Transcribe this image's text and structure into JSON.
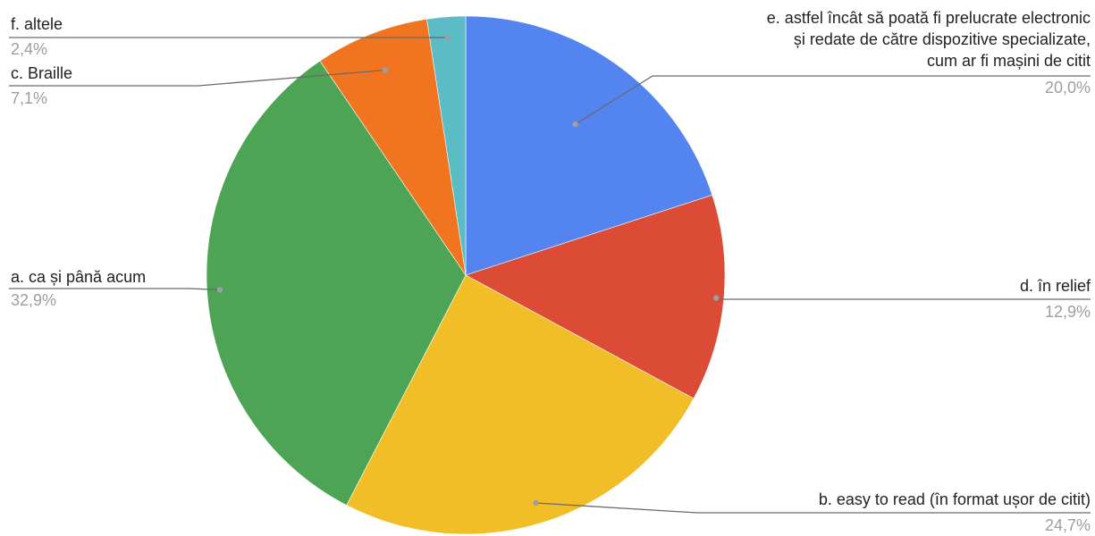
{
  "chart_data": {
    "type": "pie",
    "title": "",
    "slices": [
      {
        "label_lines": [
          "e. astfel încât să poată fi prelucrate electronic",
          "și redate de către dispozitive specializate,",
          "cum ar fi mașini de citit"
        ],
        "value": 20.0,
        "percent_label": "20,0%",
        "color": "#5384f0"
      },
      {
        "label_lines": [
          "d. în relief"
        ],
        "value": 12.9,
        "percent_label": "12,9%",
        "color": "#dc4b36"
      },
      {
        "label_lines": [
          "b.  easy to read (în format ușor de citit)"
        ],
        "value": 24.7,
        "percent_label": "24,7%",
        "color": "#f2be28"
      },
      {
        "label_lines": [
          "a. ca și până acum"
        ],
        "value": 32.9,
        "percent_label": "32,9%",
        "color": "#4ca454"
      },
      {
        "label_lines": [
          "c.  Braille"
        ],
        "value": 7.1,
        "percent_label": "7,1%",
        "color": "#f17520"
      },
      {
        "label_lines": [
          "f.  altele"
        ],
        "value": 2.4,
        "percent_label": "2,4%",
        "color": "#5bbcc6"
      }
    ],
    "start_angle": "12 o'clock",
    "direction": "clockwise",
    "legend": "none"
  }
}
